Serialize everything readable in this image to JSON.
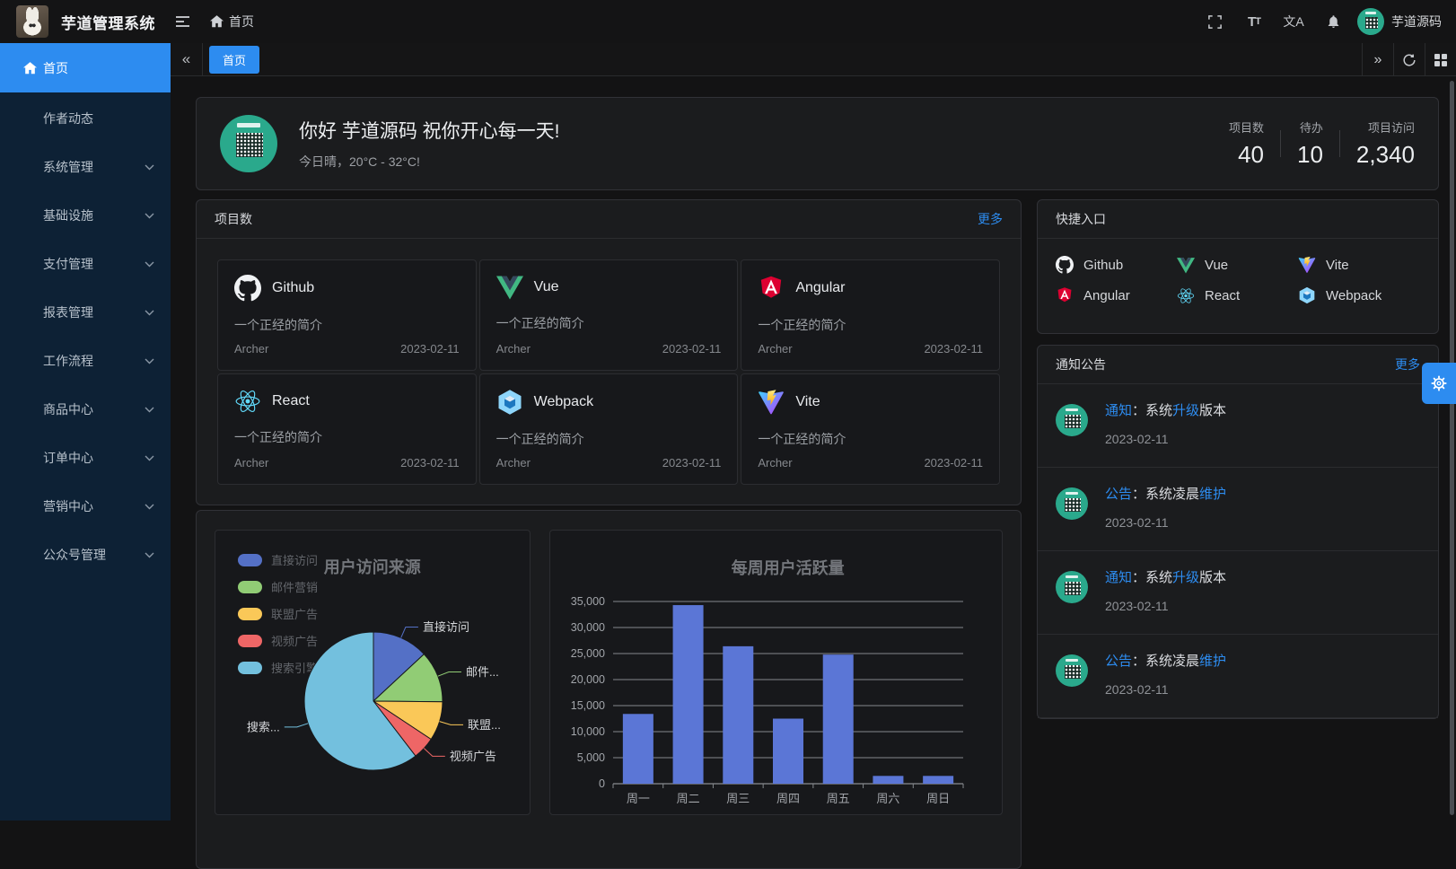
{
  "header": {
    "app_title": "芋道管理系统",
    "breadcrumb_home": "首页",
    "user_name": "芋道源码"
  },
  "icons": {
    "font_size_glyph": "T",
    "font_size_glyph_small": "T",
    "translate_glyph": "文A",
    "arrow_left_glyph": "«",
    "arrow_right_glyph": "»"
  },
  "tabbar": {
    "active_tab": "首页"
  },
  "sidebar": {
    "items": [
      {
        "label": "首页",
        "active": true
      },
      {
        "label": "作者动态"
      },
      {
        "label": "系统管理"
      },
      {
        "label": "基础设施"
      },
      {
        "label": "支付管理"
      },
      {
        "label": "报表管理"
      },
      {
        "label": "工作流程"
      },
      {
        "label": "商品中心"
      },
      {
        "label": "订单中心"
      },
      {
        "label": "营销中心"
      },
      {
        "label": "公众号管理"
      }
    ]
  },
  "greeting": {
    "title": "你好 芋道源码 祝你开心每一天!",
    "subtitle": "今日晴，20°C - 32°C!",
    "stats": [
      {
        "label": "项目数",
        "value": "40"
      },
      {
        "label": "待办",
        "value": "10"
      },
      {
        "label": "项目访问",
        "value": "2,340"
      }
    ]
  },
  "projects": {
    "title": "项目数",
    "more": "更多",
    "desc": "一个正经的简介",
    "author": "Archer",
    "date": "2023-02-11",
    "items": [
      {
        "name": "Github"
      },
      {
        "name": "Vue"
      },
      {
        "name": "Angular"
      },
      {
        "name": "React"
      },
      {
        "name": "Webpack"
      },
      {
        "name": "Vite"
      }
    ]
  },
  "quick": {
    "title": "快捷入口",
    "items": [
      {
        "label": "Github"
      },
      {
        "label": "Vue"
      },
      {
        "label": "Vite"
      },
      {
        "label": "Angular"
      },
      {
        "label": "React"
      },
      {
        "label": "Webpack"
      }
    ]
  },
  "notices": {
    "title": "通知公告",
    "more": "更多",
    "items": [
      {
        "parts": [
          {
            "t": "通知",
            "hl": true
          },
          {
            "t": "：系统"
          },
          {
            "t": "升级",
            "hl": true
          },
          {
            "t": "版本"
          }
        ],
        "date": "2023-02-11"
      },
      {
        "parts": [
          {
            "t": "公告",
            "hl": true
          },
          {
            "t": "：系统凌晨"
          },
          {
            "t": "维护",
            "hl": true
          }
        ],
        "date": "2023-02-11"
      },
      {
        "parts": [
          {
            "t": "通知",
            "hl": true
          },
          {
            "t": "：系统"
          },
          {
            "t": "升级",
            "hl": true
          },
          {
            "t": "版本"
          }
        ],
        "date": "2023-02-11"
      },
      {
        "parts": [
          {
            "t": "公告",
            "hl": true
          },
          {
            "t": "：系统凌晨"
          },
          {
            "t": "维护",
            "hl": true
          }
        ],
        "date": "2023-02-11"
      }
    ]
  },
  "chart_data": [
    {
      "type": "pie",
      "title": "用户访问来源",
      "labels": [
        "直接访问",
        "邮件营销",
        "联盟广告",
        "视频广告",
        "搜索引擎"
      ],
      "display_labels": [
        "直接访问",
        "邮件...",
        "联盟...",
        "视频广告",
        "搜索..."
      ],
      "values": [
        335,
        310,
        234,
        135,
        1548
      ],
      "colors": [
        "#5470c6",
        "#91cc75",
        "#fac858",
        "#ee6666",
        "#73c0de"
      ],
      "legend_position": "left"
    },
    {
      "type": "bar",
      "title": "每周用户活跃量",
      "categories": [
        "周一",
        "周二",
        "周三",
        "周四",
        "周五",
        "周六",
        "周日"
      ],
      "values": [
        13400,
        34300,
        26400,
        12500,
        24800,
        1500,
        1500
      ],
      "ylim": [
        0,
        35000
      ],
      "ytick_step": 5000,
      "bar_color": "#5b76d6",
      "grid": true
    }
  ],
  "colors": {
    "accent": "#2d8cf0",
    "sidebar_bg": "#0d2135",
    "header_bg": "#141415",
    "panel_bg": "#1b1c1e",
    "avatar_green": "#2aa98c"
  }
}
